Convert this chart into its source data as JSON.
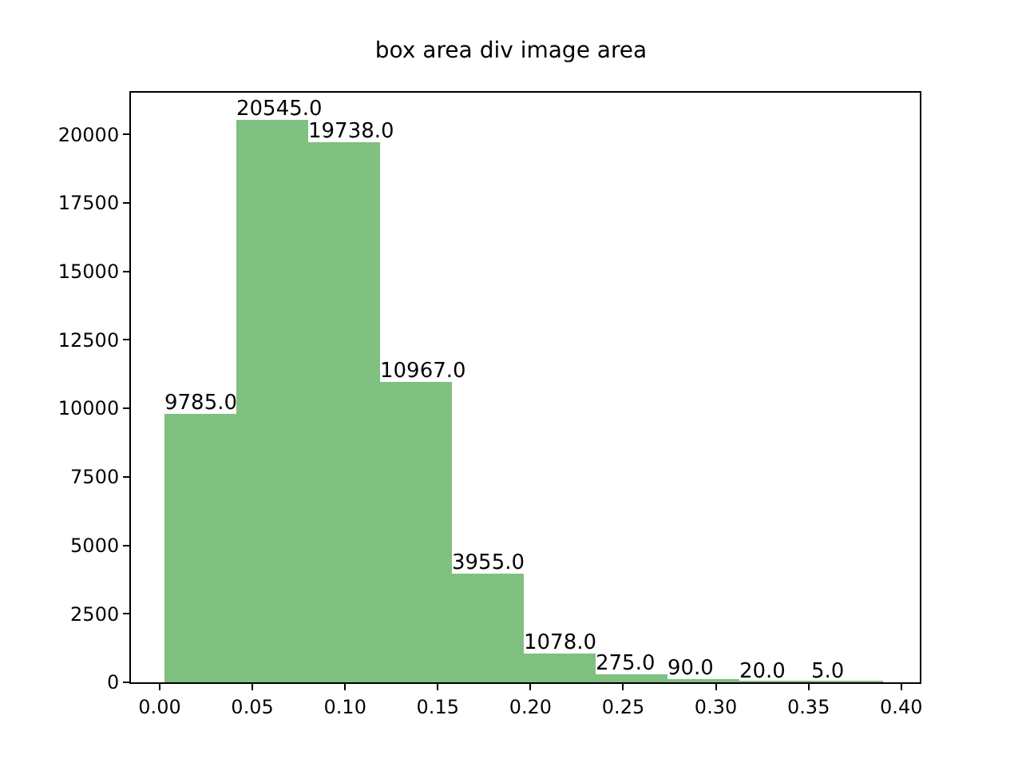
{
  "chart_data": {
    "type": "histogram",
    "title": "box area div image area",
    "bins": [
      0.0026,
      0.0414,
      0.0802,
      0.119,
      0.1578,
      0.1966,
      0.2354,
      0.2742,
      0.313,
      0.3518,
      0.3906
    ],
    "values": [
      9785,
      20545,
      19738,
      10967,
      3955,
      1078,
      275,
      90,
      20,
      5
    ],
    "value_labels": [
      "9785.0",
      "20545.0",
      "19738.0",
      "10967.0",
      "3955.0",
      "1078.0",
      "275.0",
      "90.0",
      "20.0",
      "5.0"
    ],
    "color": "#80c080",
    "xlim": [
      -0.0155,
      0.41
    ],
    "xticks": [
      {
        "value": 0,
        "label": "0.00"
      },
      {
        "value": 0.05,
        "label": "0.05"
      },
      {
        "value": 0.1,
        "label": "0.10"
      },
      {
        "value": 0.15,
        "label": "0.15"
      },
      {
        "value": 0.2,
        "label": "0.20"
      },
      {
        "value": 0.25,
        "label": "0.25"
      },
      {
        "value": 0.3,
        "label": "0.30"
      },
      {
        "value": 0.35,
        "label": "0.35"
      },
      {
        "value": 0.4,
        "label": "0.40"
      }
    ],
    "ylim": [
      0,
      21520
    ],
    "yticks": [
      0,
      2500,
      5000,
      7500,
      10000,
      12500,
      15000,
      17500,
      20000
    ],
    "grid": false
  }
}
